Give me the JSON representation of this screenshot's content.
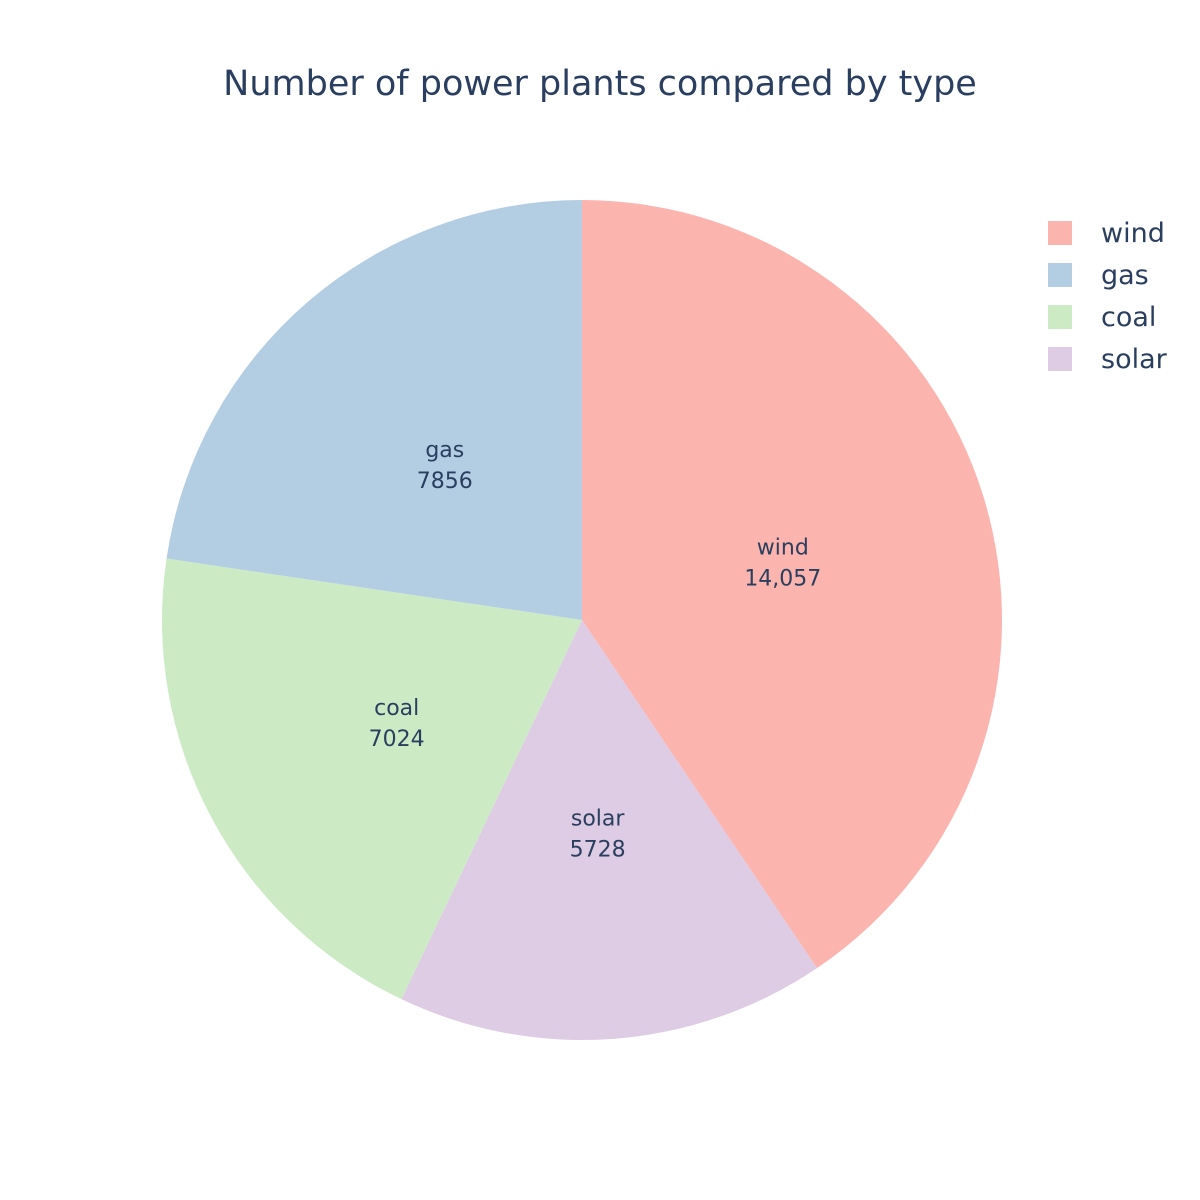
{
  "chart_data": {
    "type": "pie",
    "title": "Number of power plants compared by type",
    "categories": [
      "wind",
      "gas",
      "coal",
      "solar"
    ],
    "values": [
      14057,
      7856,
      7024,
      5728
    ],
    "value_labels": [
      "14,057",
      "7856",
      "7024",
      "5728"
    ],
    "colors": [
      "#fbb4ae",
      "#b3cde3",
      "#ccebc5",
      "#decbe4"
    ],
    "legend_position": "top-right",
    "slice_order": [
      "wind",
      "solar",
      "coal",
      "gas"
    ],
    "start_angle_deg": 0,
    "direction": "clockwise"
  },
  "legend": {
    "items": [
      {
        "label": "wind",
        "color": "#fbb4ae"
      },
      {
        "label": "gas",
        "color": "#b3cde3"
      },
      {
        "label": "coal",
        "color": "#ccebc5"
      },
      {
        "label": "solar",
        "color": "#decbe4"
      }
    ]
  }
}
